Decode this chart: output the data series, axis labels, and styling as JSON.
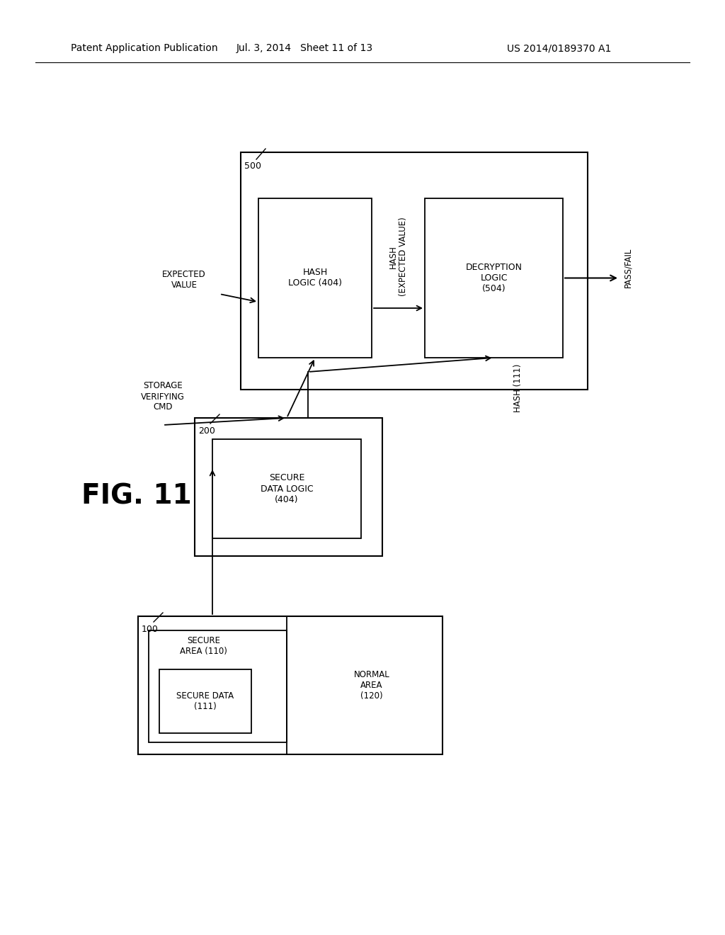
{
  "bg_color": "#ffffff",
  "header_left": "Patent Application Publication",
  "header_mid": "Jul. 3, 2014   Sheet 11 of 13",
  "header_right": "US 2014/0189370 A1",
  "fig_label": "FIG. 11"
}
